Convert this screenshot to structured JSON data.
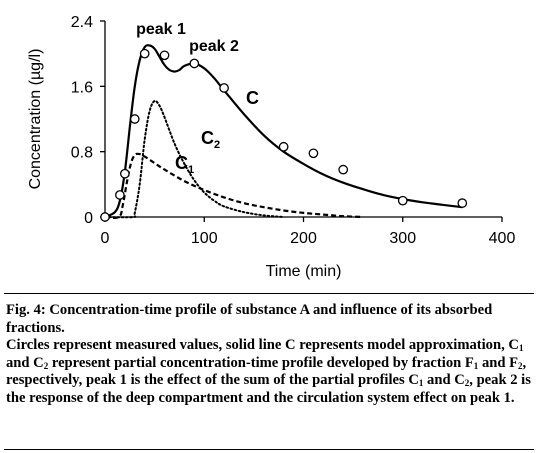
{
  "chart_data": {
    "type": "line",
    "xlabel": "Time (min)",
    "ylabel": "Concentration (µg/l)",
    "xlim": [
      0,
      400
    ],
    "ylim": [
      0,
      2.4
    ],
    "x_ticks": [
      "0",
      "100",
      "200",
      "300",
      "400"
    ],
    "y_ticks": [
      "0",
      "0.8",
      "1.6",
      "2.4"
    ],
    "grid": false,
    "series": [
      {
        "name": "C",
        "style": "solid",
        "x": [
          0,
          10,
          15,
          20,
          25,
          30,
          35,
          40,
          45,
          50,
          55,
          60,
          65,
          70,
          75,
          80,
          90,
          100,
          110,
          120,
          140,
          160,
          180,
          200,
          220,
          240,
          260,
          280,
          300,
          320,
          340,
          360
        ],
        "y": [
          0,
          0.06,
          0.2,
          0.55,
          1.1,
          1.6,
          1.92,
          2.08,
          2.1,
          2.06,
          1.96,
          1.86,
          1.8,
          1.78,
          1.8,
          1.85,
          1.88,
          1.82,
          1.7,
          1.55,
          1.26,
          1.0,
          0.8,
          0.65,
          0.52,
          0.42,
          0.34,
          0.27,
          0.22,
          0.18,
          0.15,
          0.12
        ]
      },
      {
        "name": "C2",
        "style": "dotted",
        "x": [
          0,
          28,
          30,
          35,
          40,
          45,
          50,
          55,
          60,
          70,
          80,
          90,
          100,
          110,
          120,
          140,
          160,
          180
        ],
        "y": [
          0,
          0,
          0.05,
          0.4,
          0.95,
          1.3,
          1.42,
          1.36,
          1.22,
          0.9,
          0.65,
          0.45,
          0.3,
          0.2,
          0.13,
          0.06,
          0.02,
          0
        ],
        "label_sub": "2"
      },
      {
        "name": "C1",
        "style": "dashed",
        "x": [
          0,
          14,
          18,
          22,
          26,
          30,
          35,
          40,
          50,
          60,
          80,
          100,
          120,
          140,
          160,
          180,
          200,
          220,
          240,
          260
        ],
        "y": [
          0,
          0,
          0.15,
          0.42,
          0.65,
          0.76,
          0.77,
          0.74,
          0.66,
          0.58,
          0.44,
          0.33,
          0.24,
          0.17,
          0.12,
          0.08,
          0.05,
          0.03,
          0.01,
          0
        ],
        "label_sub": "1"
      },
      {
        "name": "measured",
        "style": "circles",
        "x": [
          0,
          15,
          20,
          30,
          40,
          60,
          90,
          120,
          180,
          210,
          240,
          300,
          360
        ],
        "y": [
          0,
          0.27,
          0.53,
          1.2,
          2.0,
          1.98,
          1.88,
          1.58,
          0.86,
          0.78,
          0.58,
          0.2,
          0.17
        ]
      }
    ],
    "annotations": {
      "peak1": "peak 1",
      "peak2": "peak 2",
      "curve_c": "C",
      "curve_c2": "C",
      "curve_c2_sub": "2",
      "curve_c1": "C",
      "curve_c1_sub": "1"
    }
  },
  "caption": {
    "line1": "Fig. 4: Concentration-time profile of substance A and influence of its absorbed fractions.",
    "p2_a": "Circles represent measured values, solid line C represents model approximation, C",
    "p2_sub1": "1",
    "p2_b": " and C",
    "p2_sub2": "2",
    "p2_c": " represent partial concentration-time profile developed by fraction F",
    "p2_sub3": "1",
    "p2_d": " and F",
    "p2_sub4": "2",
    "p2_e": ", respectively, peak 1 is the effect of the sum of the partial profiles C",
    "p2_sub5": "1",
    "p2_f": " and C",
    "p2_sub6": "2",
    "p2_g": ", peak 2 is the response of the deep compartment and the circulation system effect on peak 1."
  }
}
